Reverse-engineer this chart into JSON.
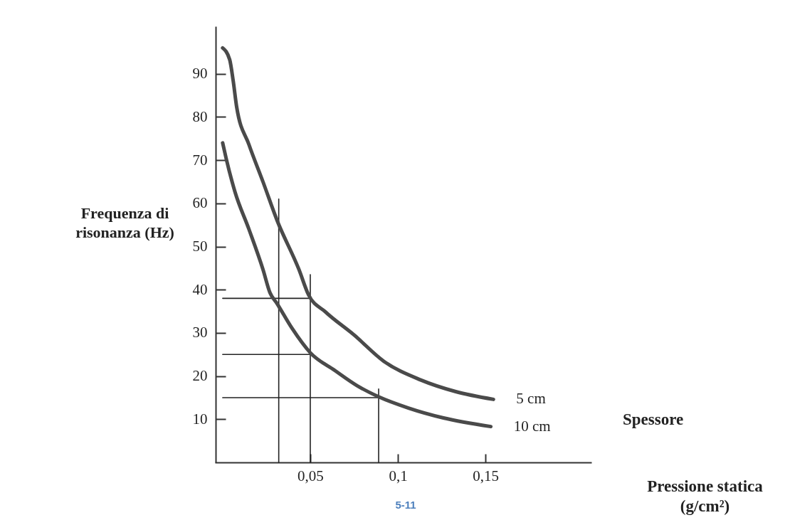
{
  "chart_data": {
    "type": "line",
    "xlabel": "Pressione statica (g/cm²)",
    "ylabel": "Frequenza di risonanza (Hz)",
    "legend_title": "Spessore",
    "xlim": [
      -0.004,
      0.21
    ],
    "ylim": [
      0,
      101
    ],
    "xticks": [
      {
        "value": 0.05,
        "label": "0,05"
      },
      {
        "value": 0.1,
        "label": "0,1"
      },
      {
        "value": 0.15,
        "label": "0,15"
      }
    ],
    "yticks": [
      10,
      20,
      30,
      40,
      50,
      60,
      70,
      80,
      90
    ],
    "grid": false,
    "legend": "right",
    "marker": "none",
    "line_style": "solid",
    "series": [
      {
        "color": "#222222",
        "x": [
          0,
          0.05
        ],
        "values": [
          38,
          38
        ]
      },
      {
        "color": "#222222",
        "x": [
          0,
          0.05
        ],
        "values": [
          25,
          25
        ]
      },
      {
        "color": "#222222",
        "x": [
          0,
          0.089
        ],
        "values": [
          15,
          15
        ]
      },
      {
        "color": "#222222",
        "x": [
          0.032,
          0.032
        ],
        "values": [
          0,
          61
        ]
      },
      {
        "color": "#222222",
        "x": [
          0.05,
          0.05
        ],
        "values": [
          0,
          43.5
        ]
      },
      {
        "color": "#222222",
        "x": [
          0.089,
          0.089
        ],
        "values": [
          0,
          17
        ]
      },
      {
        "name": "5 cm",
        "color": "#4a4a4a",
        "x": [
          0,
          0.004,
          0.006,
          0.008,
          0.015,
          0.023,
          0.031,
          0.0435,
          0.049,
          0.0585,
          0.075,
          0.092,
          0.113,
          0.133,
          0.1545
        ],
        "values": [
          96,
          93.3,
          88.4,
          82.3,
          73.6,
          65,
          56.1,
          44.7,
          38.8,
          34.9,
          29.5,
          23.4,
          19.1,
          16.4,
          14.6
        ]
      },
      {
        "name": "10 cm",
        "color": "#4a4a4a",
        "x": [
          0,
          0.002,
          0.007,
          0.015,
          0.023,
          0.027,
          0.031,
          0.0395,
          0.05,
          0.064,
          0.077,
          0.089,
          0.106,
          0.126,
          0.153
        ],
        "values": [
          74,
          70.4,
          62.7,
          54,
          44.7,
          39.3,
          36.8,
          31.1,
          25.4,
          21.3,
          17.7,
          15.2,
          12.6,
          10.3,
          8.3
        ]
      }
    ],
    "annotations": [
      "5-11"
    ]
  }
}
